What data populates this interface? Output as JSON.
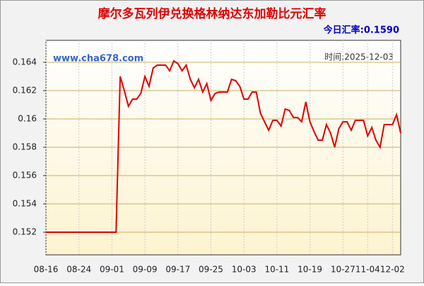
{
  "chart_data": {
    "type": "line",
    "title": "摩尔多瓦列伊兑换格林纳达东加勒比元汇率",
    "subtitle": "今日汇率:0.1590",
    "watermark": "www.cha678.com",
    "date_note": "时间:2025-12-03",
    "categories": [
      "08-16",
      null,
      null,
      null,
      null,
      null,
      null,
      null,
      "08-24",
      null,
      null,
      null,
      null,
      null,
      null,
      null,
      "09-01",
      null,
      null,
      null,
      null,
      null,
      null,
      null,
      "09-09",
      null,
      null,
      null,
      null,
      null,
      null,
      null,
      "09-17",
      null,
      null,
      null,
      null,
      null,
      null,
      null,
      "09-25",
      null,
      null,
      null,
      null,
      null,
      null,
      null,
      "10-03",
      null,
      null,
      null,
      null,
      null,
      null,
      null,
      "10-11",
      null,
      null,
      null,
      null,
      null,
      null,
      null,
      "10-19",
      null,
      null,
      null,
      null,
      null,
      null,
      null,
      "10-27",
      null,
      null,
      null,
      null,
      null,
      "11-04",
      null,
      null,
      null,
      null,
      null,
      "12-02",
      null,
      null
    ],
    "values": [
      0.152,
      0.152,
      0.152,
      0.152,
      0.152,
      0.152,
      0.152,
      0.152,
      0.152,
      0.152,
      0.152,
      0.152,
      0.152,
      0.152,
      0.152,
      0.152,
      0.152,
      0.152,
      0.163,
      0.162,
      0.1609,
      0.1614,
      0.1614,
      0.1618,
      0.163,
      0.1623,
      0.1636,
      0.1638,
      0.1638,
      0.1638,
      0.1634,
      0.1641,
      0.1639,
      0.1634,
      0.1638,
      0.1628,
      0.1622,
      0.1628,
      0.1619,
      0.1625,
      0.1613,
      0.1618,
      0.1619,
      0.1619,
      0.1619,
      0.1628,
      0.1627,
      0.1623,
      0.1614,
      0.1614,
      0.1619,
      0.1619,
      0.1604,
      0.1598,
      0.1592,
      0.1599,
      0.1599,
      0.1595,
      0.1607,
      0.1606,
      0.1601,
      0.1601,
      0.1598,
      0.1612,
      0.1598,
      0.1591,
      0.1585,
      0.1585,
      0.1596,
      0.159,
      0.158,
      0.1593,
      0.1598,
      0.1598,
      0.1592,
      0.1599,
      0.1599,
      0.1599,
      0.1588,
      0.1594,
      0.1585,
      0.158,
      0.1596,
      0.1596,
      0.1596,
      0.1603,
      0.159
    ],
    "color": "#e00000",
    "ylim": [
      0.1504,
      0.16555
    ],
    "yticks": [
      0.152,
      0.154,
      0.156,
      0.158,
      0.16,
      0.162,
      0.164
    ],
    "grid": true
  }
}
